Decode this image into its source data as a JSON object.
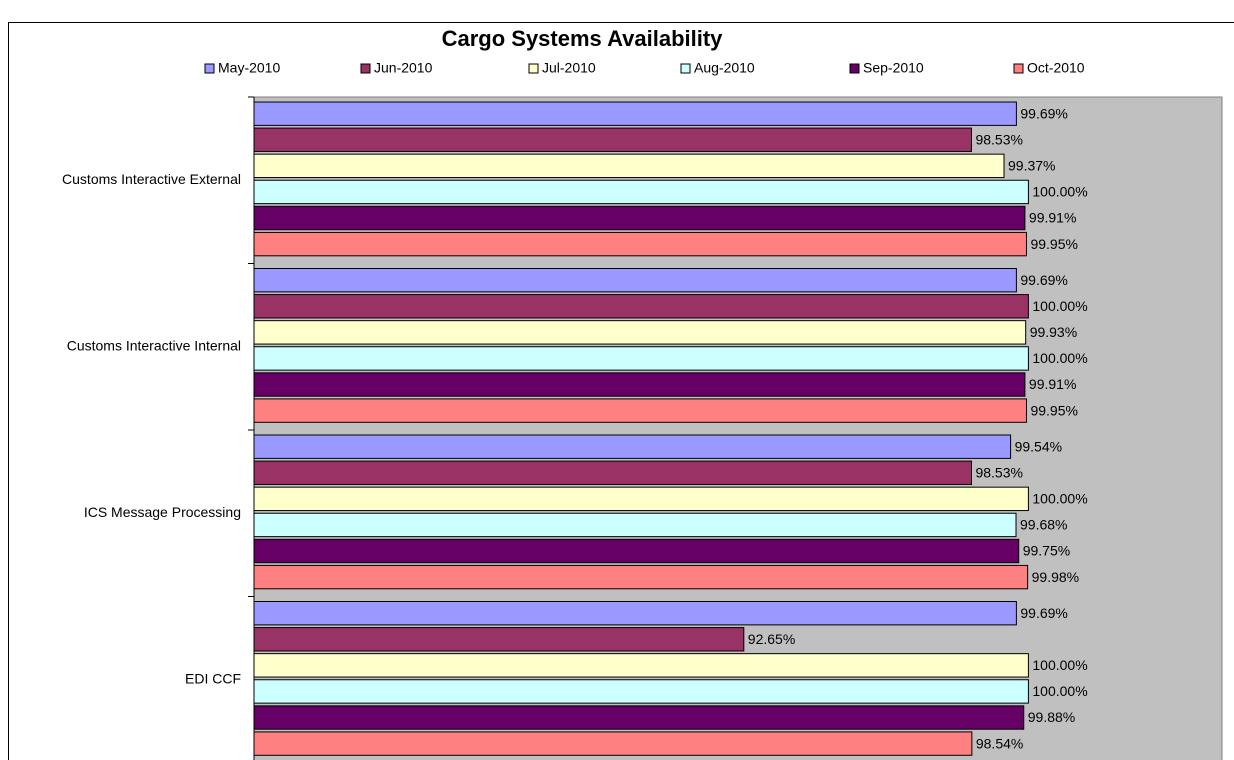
{
  "chart_data": {
    "type": "hbar",
    "title": "Cargo Systems Availability",
    "categories": [
      "Customs Interactive External",
      "Customs Interactive Internal",
      "ICS Message Processing",
      "EDI CCF"
    ],
    "series": [
      {
        "name": "May-2010",
        "color": "#9999ff",
        "values": [
          99.69,
          99.69,
          99.54,
          99.69
        ],
        "value_labels": [
          "99.69%",
          "99.69%",
          "99.54%",
          "99.69%"
        ]
      },
      {
        "name": "Jun-2010",
        "color": "#993366",
        "values": [
          98.53,
          100,
          98.53,
          92.65
        ],
        "value_labels": [
          "98.53%",
          "100.00%",
          "98.53%",
          "92.65%"
        ]
      },
      {
        "name": "Jul-2010",
        "color": "#ffffcc",
        "values": [
          99.37,
          99.93,
          100,
          100
        ],
        "value_labels": [
          "99.37%",
          "99.93%",
          "100.00%",
          "100.00%"
        ]
      },
      {
        "name": "Aug-2010",
        "color": "#ccffff",
        "values": [
          100,
          100,
          99.68,
          100
        ],
        "value_labels": [
          "100.00%",
          "100.00%",
          "99.68%",
          "100.00%"
        ]
      },
      {
        "name": "Sep-2010",
        "color": "#660066",
        "values": [
          99.91,
          99.91,
          99.75,
          99.88
        ],
        "value_labels": [
          "99.91%",
          "99.91%",
          "99.75%",
          "99.88%"
        ]
      },
      {
        "name": "Oct-2010",
        "color": "#ff8080",
        "values": [
          99.95,
          99.95,
          99.98,
          98.54
        ],
        "value_labels": [
          "99.95%",
          "99.95%",
          "99.98%",
          "98.54%"
        ]
      }
    ],
    "xlim": [
      80,
      105
    ],
    "plot_background": "#c0c0c0",
    "legend": "top"
  }
}
